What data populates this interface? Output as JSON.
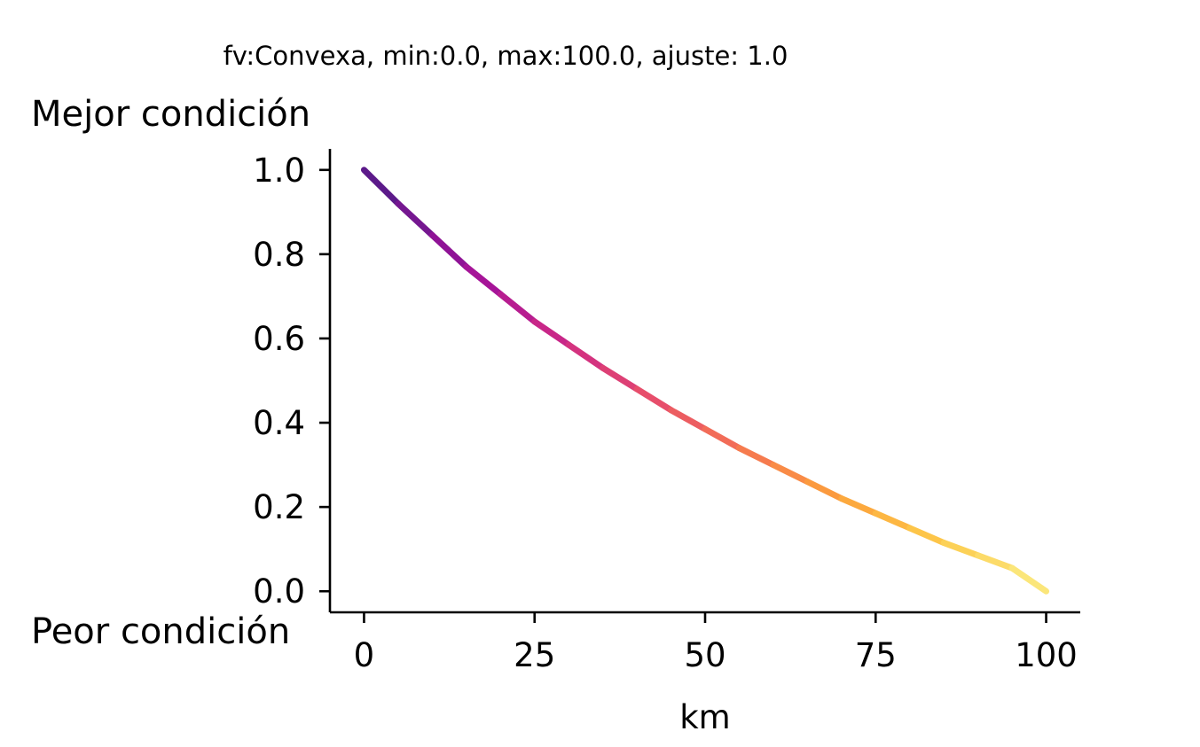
{
  "chart_data": {
    "type": "line",
    "title": "fv:Convexa, min:0.0, max:100.0, ajuste: 1.0",
    "top_label": "Mejor condición",
    "bottom_label": "Peor condición",
    "xlabel": "km",
    "ylabel": "",
    "xlim": [
      -5,
      105
    ],
    "ylim": [
      -0.05,
      1.05
    ],
    "x_ticks": [
      0,
      25,
      50,
      75,
      100
    ],
    "x_tick_labels": [
      "0",
      "25",
      "50",
      "75",
      "100"
    ],
    "y_ticks": [
      0.0,
      0.2,
      0.4,
      0.6,
      0.8,
      1.0
    ],
    "y_tick_labels": [
      "0.0",
      "0.2",
      "0.4",
      "0.6",
      "0.8",
      "1.0"
    ],
    "grid": false,
    "colormap": [
      "#5c1a8a",
      "#a1119a",
      "#cf2b85",
      "#e8506a",
      "#f6794f",
      "#fca33b",
      "#fdc94b",
      "#fbe67a"
    ],
    "series": [
      {
        "x": [
          0,
          5,
          10,
          15,
          20,
          25,
          30,
          35,
          40,
          45,
          50,
          55,
          60,
          65,
          70,
          75,
          80,
          85,
          90,
          95,
          100
        ],
        "y": [
          1.0,
          0.92,
          0.845,
          0.77,
          0.705,
          0.64,
          0.585,
          0.53,
          0.48,
          0.43,
          0.385,
          0.34,
          0.3,
          0.26,
          0.22,
          0.185,
          0.15,
          0.115,
          0.085,
          0.055,
          0.0
        ]
      }
    ]
  }
}
